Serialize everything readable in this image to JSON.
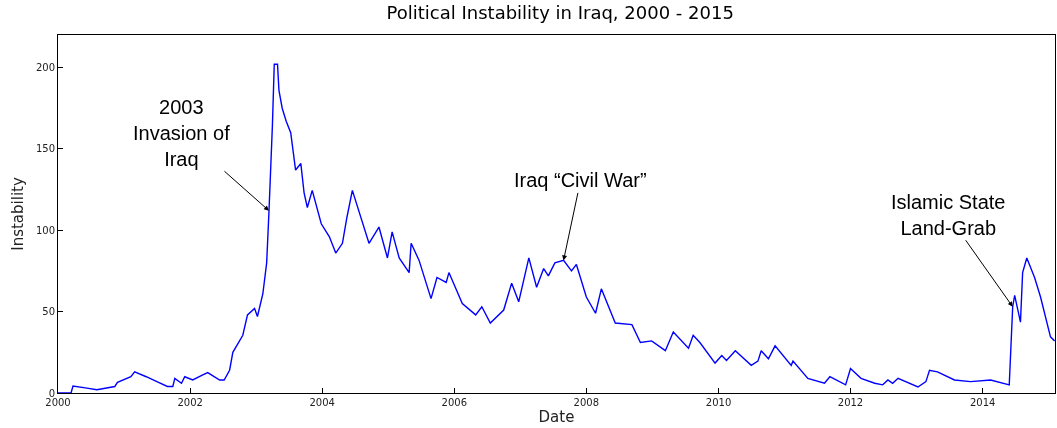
{
  "chart_data": {
    "type": "line",
    "title": "Political Instability in Iraq, 2000 - 2015",
    "xlabel": "Date",
    "ylabel": "Instability",
    "x": [
      "2000-01-01",
      "2000-03-13",
      "2000-03-24",
      "2000-06-09",
      "2000-08-03",
      "2000-11-10",
      "2000-11-25",
      "2001-02-07",
      "2001-02-28",
      "2001-05-03",
      "2001-07-01",
      "2001-08-28",
      "2001-09-27",
      "2001-10-08",
      "2001-11-14",
      "2001-12-02",
      "2002-01-15",
      "2002-03-09",
      "2002-04-08",
      "2002-06-13",
      "2002-07-08",
      "2002-08-07",
      "2002-08-25",
      "2002-10-19",
      "2002-11-14",
      "2002-12-23",
      "2003-01-08",
      "2003-02-07",
      "2003-02-28",
      "2003-03-13",
      "2003-04-01",
      "2003-04-11",
      "2003-04-29",
      "2003-05-07",
      "2003-05-25",
      "2003-06-16",
      "2003-07-11",
      "2003-08-07",
      "2003-09-05",
      "2003-09-23",
      "2003-10-11",
      "2003-11-07",
      "2003-12-27",
      "2004-02-10",
      "2004-03-16",
      "2004-04-22",
      "2004-05-17",
      "2004-06-16",
      "2004-09-16",
      "2004-11-10",
      "2004-12-27",
      "2005-01-22",
      "2005-03-02",
      "2005-04-26",
      "2005-05-07",
      "2005-06-20",
      "2005-08-25",
      "2005-09-27",
      "2005-11-17",
      "2005-12-02",
      "2006-02-14",
      "2006-04-29",
      "2006-06-02",
      "2006-07-19",
      "2006-10-01",
      "2006-11-14",
      "2006-12-23",
      "2007-02-17",
      "2007-04-01",
      "2007-05-10",
      "2007-06-05",
      "2007-07-11",
      "2007-08-28",
      "2007-10-11",
      "2007-11-07",
      "2008-01-01",
      "2008-02-21",
      "2008-03-24",
      "2008-06-09",
      "2008-09-09",
      "2008-10-26",
      "2008-12-27",
      "2009-03-13",
      "2009-04-26",
      "2009-07-19",
      "2009-08-14",
      "2009-09-20",
      "2009-12-13",
      "2010-01-19",
      "2010-02-14",
      "2010-04-04",
      "2010-07-01",
      "2010-08-07",
      "2010-08-25",
      "2010-10-04",
      "2010-11-10",
      "2011-02-07",
      "2011-02-17",
      "2011-05-10",
      "2011-08-10",
      "2011-09-09",
      "2011-12-05",
      "2012-01-01",
      "2012-02-28",
      "2012-05-14",
      "2012-06-27",
      "2012-07-26",
      "2012-08-21",
      "2012-09-20",
      "2013-01-08",
      "2013-02-21",
      "2013-03-13",
      "2013-04-26",
      "2013-07-29",
      "2013-10-26",
      "2014-02-14",
      "2014-05-28",
      "2014-06-16",
      "2014-06-27",
      "2014-07-29",
      "2014-08-10",
      "2014-09-02",
      "2014-10-15",
      "2014-11-17",
      "2015-01-11",
      "2015-02-03"
    ],
    "series": [
      {
        "color": "#0000ff",
        "values": [
          0,
          0,
          4.3,
          3,
          2,
          4,
          6.5,
          10,
          13,
          10,
          7,
          4,
          4,
          9,
          6,
          10,
          8,
          11,
          12.5,
          8,
          8,
          14,
          25,
          35.5,
          48,
          52,
          47,
          61,
          80,
          112,
          165,
          202,
          202,
          186,
          175,
          167,
          160,
          137,
          141,
          123,
          114,
          124.5,
          104,
          96,
          86,
          92,
          108,
          124.5,
          92,
          102,
          83,
          99,
          83,
          74,
          92,
          81.5,
          58,
          71,
          68,
          74,
          55,
          48,
          53,
          43,
          51,
          67.5,
          56,
          83,
          65,
          76.5,
          72,
          80,
          81.5,
          75,
          79,
          59,
          49,
          64,
          43,
          42,
          31,
          32,
          26,
          37.5,
          27.5,
          35.5,
          31,
          18.4,
          23,
          20,
          26,
          17,
          19.6,
          26,
          21,
          29,
          17,
          19.6,
          9,
          6,
          10,
          5,
          15,
          9,
          6,
          5,
          8,
          6,
          9,
          3.7,
          7,
          14,
          13,
          8,
          7,
          8,
          5,
          53,
          60,
          43.5,
          74,
          83,
          71,
          59,
          34.5,
          32
        ]
      }
    ],
    "xlim": [
      "2000-01-01",
      "2015-02-05"
    ],
    "xticks": [
      "2000",
      "2002",
      "2004",
      "2006",
      "2008",
      "2010",
      "2012",
      "2014"
    ],
    "ylim": [
      0,
      220
    ],
    "yticks": [
      0,
      50,
      100,
      150,
      200
    ],
    "marker": "none",
    "line_style": "solid",
    "annotations": [
      {
        "text": "2003\nInvasion of\nIraq",
        "x": "2003-03-13",
        "y": 112
      },
      {
        "text": "Iraq “Civil War”",
        "x": "2007-08-28",
        "y": 81.5
      },
      {
        "text": "Islamic State\nLand-Grab",
        "x": "2014-06-16",
        "y": 53
      }
    ]
  }
}
